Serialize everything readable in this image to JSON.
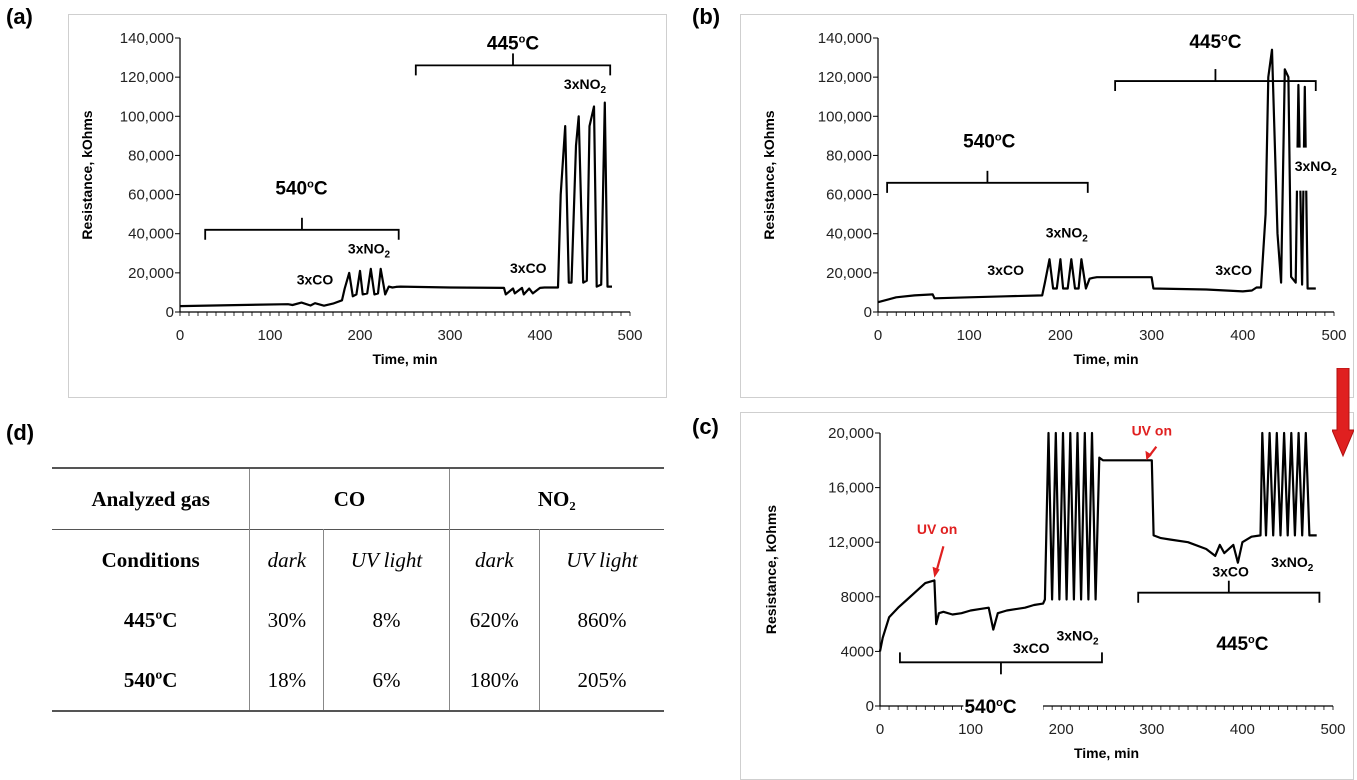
{
  "panels": {
    "a": {
      "letter": "(a)"
    },
    "b": {
      "letter": "(b)"
    },
    "c": {
      "letter": "(c)"
    },
    "d": {
      "letter": "(d)"
    }
  },
  "chart_data": [
    {
      "panel": "(a)",
      "type": "line",
      "xlabel": "Time, min",
      "ylabel": "Resistance, kOhms",
      "xlim": [
        0,
        500
      ],
      "ylim": [
        0,
        140000
      ],
      "x_ticks": [
        "0",
        "100",
        "200",
        "300",
        "400",
        "500"
      ],
      "y_ticks": [
        "0",
        "20,000",
        "40,000",
        "60,000",
        "80,000",
        "100,000",
        "120,000",
        "140,000"
      ],
      "annotations": [
        "540°C",
        "445°C",
        "3xCO",
        "3xNO2",
        "3xCO",
        "3xNO2"
      ],
      "series": [
        {
          "x": [
            0,
            60,
            120,
            125,
            135,
            145,
            150,
            160,
            170,
            180,
            183,
            188,
            192,
            196,
            200,
            203,
            208,
            212,
            216,
            220,
            223,
            228,
            232,
            236,
            240,
            245,
            300,
            360,
            362,
            370,
            372,
            380,
            382,
            388,
            392,
            400,
            405,
            415,
            420,
            423,
            428,
            432,
            435,
            440,
            443,
            448,
            452,
            455,
            460,
            463,
            468,
            472,
            475,
            480
          ],
          "values": [
            3000,
            3500,
            4000,
            3600,
            4800,
            3300,
            4500,
            3200,
            4300,
            6000,
            12000,
            20000,
            8000,
            9000,
            21000,
            9000,
            9500,
            22000,
            9000,
            9500,
            22000,
            9000,
            13000,
            12500,
            12800,
            13000,
            12500,
            12300,
            9000,
            12000,
            9500,
            12300,
            9000,
            12000,
            9500,
            12300,
            12500,
            12500,
            12500,
            60000,
            95000,
            15000,
            15000,
            85000,
            100000,
            15000,
            16000,
            95000,
            105000,
            13000,
            14000,
            107000,
            13000,
            13000
          ]
        }
      ]
    },
    {
      "panel": "(b)",
      "type": "line",
      "xlabel": "Time, min",
      "ylabel": "Resistance, kOhms",
      "xlim": [
        0,
        500
      ],
      "ylim": [
        0,
        140000
      ],
      "x_ticks": [
        "0",
        "100",
        "200",
        "300",
        "400",
        "500"
      ],
      "y_ticks": [
        "0",
        "20,000",
        "40,000",
        "60,000",
        "80,000",
        "100,000",
        "120,000",
        "140,000"
      ],
      "annotations": [
        "540°C",
        "445°C",
        "3xCO",
        "3xNO2",
        "3xCO",
        "3xNO2"
      ],
      "series": [
        {
          "x": [
            0,
            20,
            40,
            60,
            62,
            100,
            140,
            180,
            183,
            188,
            192,
            196,
            200,
            203,
            208,
            212,
            216,
            220,
            223,
            228,
            232,
            236,
            240,
            300,
            302,
            360,
            400,
            410,
            415,
            420,
            425,
            428,
            432,
            438,
            442,
            446,
            450,
            453,
            458,
            461,
            465,
            468,
            471,
            480
          ],
          "values": [
            5000,
            7500,
            8500,
            9000,
            7000,
            7500,
            8000,
            8500,
            15000,
            27000,
            12000,
            12000,
            27000,
            12000,
            12000,
            27000,
            12000,
            12000,
            27000,
            12000,
            17000,
            17500,
            17800,
            17800,
            12000,
            11500,
            10500,
            11000,
            12500,
            12500,
            50000,
            120000,
            134000,
            40000,
            15000,
            124000,
            120000,
            18000,
            15000,
            116000,
            14000,
            115000,
            12000,
            12000
          ]
        }
      ]
    },
    {
      "panel": "(c)",
      "type": "line",
      "xlabel": "Time, min",
      "ylabel": "Resistance, kOhms",
      "xlim": [
        0,
        500
      ],
      "ylim": [
        0,
        20000
      ],
      "x_ticks": [
        "0",
        "100",
        "200",
        "300",
        "400",
        "500"
      ],
      "y_ticks": [
        "0",
        "4000",
        "8000",
        "12,000",
        "16,000",
        "20,000"
      ],
      "annotations": [
        "UV on",
        "UV on",
        "540°C",
        "445°C",
        "3xCO",
        "3xNO2",
        "3xCO",
        "3xNO2"
      ],
      "series": [
        {
          "x": [
            0,
            3,
            10,
            20,
            30,
            40,
            50,
            60,
            62,
            65,
            70,
            80,
            90,
            100,
            110,
            120,
            125,
            130,
            140,
            150,
            160,
            170,
            180,
            182,
            186,
            190,
            194,
            198,
            202,
            206,
            210,
            214,
            218,
            222,
            226,
            230,
            234,
            238,
            242,
            246,
            300,
            302,
            310,
            320,
            340,
            360,
            370,
            375,
            380,
            390,
            395,
            400,
            410,
            420,
            422,
            426,
            430,
            434,
            438,
            442,
            446,
            450,
            454,
            458,
            462,
            466,
            470,
            474,
            478,
            482
          ],
          "values": [
            4000,
            5000,
            6500,
            7200,
            7800,
            8400,
            9000,
            9200,
            6000,
            6800,
            6900,
            6700,
            6800,
            7000,
            7100,
            7200,
            5600,
            6800,
            7000,
            7100,
            7200,
            7400,
            7500,
            7800,
            20000,
            7800,
            20000,
            7800,
            20000,
            7800,
            20000,
            7800,
            20000,
            7800,
            20000,
            7800,
            20000,
            7800,
            18200,
            18000,
            18000,
            12500,
            12300,
            12200,
            12000,
            11500,
            11000,
            11800,
            11200,
            11800,
            10500,
            12000,
            12400,
            12500,
            20000,
            12500,
            20000,
            12500,
            20000,
            12500,
            20000,
            12500,
            20000,
            12500,
            20000,
            12500,
            20000,
            12500,
            12500,
            12500
          ]
        }
      ]
    }
  ],
  "table": {
    "header_gas": "Analyzed gas",
    "co": "CO",
    "no2": "NO₂",
    "conditions": "Conditions",
    "dark1": "dark",
    "uv1": "UV light",
    "dark2": "dark",
    "uv2": "UV light",
    "rows": [
      {
        "temp": "445ºC",
        "co_dark": "30%",
        "co_uv": "8%",
        "no2_dark": "620%",
        "no2_uv": "860%"
      },
      {
        "temp": "540ºC",
        "co_dark": "18%",
        "co_uv": "6%",
        "no2_dark": "180%",
        "no2_uv": "205%"
      }
    ]
  },
  "colors": {
    "line": "#000000",
    "uv_annotation": "#e02020",
    "arrow": "#e02020",
    "frame": "#cfcfcf"
  }
}
